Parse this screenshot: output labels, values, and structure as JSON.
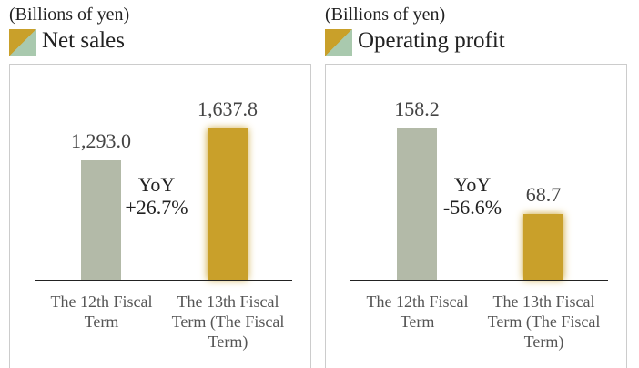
{
  "chart_data": [
    {
      "type": "bar",
      "unit": "(Billions of yen)",
      "title": "Net sales",
      "categories": [
        "The 12th Fiscal Term",
        "The 13th Fiscal Term (The Fiscal Term)"
      ],
      "values": [
        1293.0,
        1637.8
      ],
      "value_labels": [
        "1,293.0",
        "1,637.8"
      ],
      "colors": [
        "#b3baa8",
        "#c9a02a"
      ],
      "annotations": [
        "YoY",
        "+26.7%"
      ]
    },
    {
      "type": "bar",
      "unit": "(Billions of yen)",
      "title": "Operating profit",
      "categories": [
        "The 12th Fiscal Term",
        "The 13th Fiscal Term (The Fiscal Term)"
      ],
      "values": [
        158.2,
        68.7
      ],
      "value_labels": [
        "158.2",
        "68.7"
      ],
      "colors": [
        "#b3baa8",
        "#c9a02a"
      ],
      "annotations": [
        "YoY",
        "-56.6%"
      ]
    }
  ]
}
